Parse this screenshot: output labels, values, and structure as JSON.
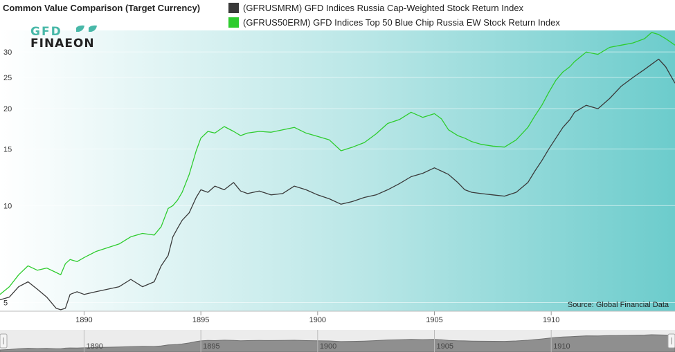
{
  "header": {
    "title": "Common Value Comparison (Target Currency)"
  },
  "logo": {
    "line1": "GFD",
    "line2": "FINAEON"
  },
  "source": "Source: Global Financial Data",
  "navigator": {
    "tick_labels": [
      "1890",
      "1895",
      "1900",
      "1905",
      "1910"
    ]
  },
  "colors": {
    "series1": "#3a3a3a",
    "series2": "#2ecc2e",
    "bg_left": "#ffffff",
    "bg_right": "#6ccccc"
  },
  "chart_data": {
    "type": "line",
    "title": "Common Value Comparison (Target Currency)",
    "x_axis": {
      "scale": "time",
      "range": [
        1886.4,
        1915.3
      ],
      "ticks": [
        1890,
        1895,
        1900,
        1905,
        1910
      ],
      "tick_labels": [
        "1890",
        "1895",
        "1900",
        "1905",
        "1910"
      ]
    },
    "y_axis": {
      "scale": "log",
      "range": [
        4.7,
        35
      ],
      "ticks": [
        5,
        10,
        15,
        20,
        25,
        30
      ],
      "tick_labels": [
        "5",
        "10",
        "15",
        "20",
        "25",
        "30"
      ]
    },
    "series": [
      {
        "name": "(GFRUSMRM) GFD Indices Russia Cap-Weighted Stock Return Index",
        "color": "#3a3a3a",
        "x": [
          1886.4,
          1886.8,
          1887.2,
          1887.6,
          1888.0,
          1888.4,
          1888.8,
          1889.0,
          1889.2,
          1889.4,
          1889.7,
          1890.0,
          1890.5,
          1891.0,
          1891.5,
          1892.0,
          1892.5,
          1893.0,
          1893.3,
          1893.6,
          1893.8,
          1894.0,
          1894.2,
          1894.5,
          1894.8,
          1895.0,
          1895.3,
          1895.6,
          1896.0,
          1896.4,
          1896.7,
          1897.0,
          1897.5,
          1898.0,
          1898.5,
          1899.0,
          1899.5,
          1900.0,
          1900.5,
          1901.0,
          1901.5,
          1902.0,
          1902.5,
          1903.0,
          1903.5,
          1904.0,
          1904.5,
          1905.0,
          1905.3,
          1905.6,
          1906.0,
          1906.3,
          1906.6,
          1907.0,
          1907.5,
          1908.0,
          1908.5,
          1909.0,
          1909.3,
          1909.6,
          1909.9,
          1910.2,
          1910.5,
          1910.8,
          1911.0,
          1911.5,
          1912.0,
          1912.5,
          1913.0,
          1913.5,
          1914.0,
          1914.3,
          1914.6,
          1914.9,
          1915.3
        ],
        "values": [
          5.1,
          5.2,
          5.6,
          5.8,
          5.5,
          5.2,
          4.8,
          4.75,
          4.8,
          5.3,
          5.4,
          5.3,
          5.4,
          5.5,
          5.6,
          5.9,
          5.6,
          5.8,
          6.5,
          7.0,
          8.0,
          8.5,
          9.0,
          9.5,
          10.6,
          11.2,
          11.0,
          11.5,
          11.2,
          11.8,
          11.1,
          10.9,
          11.1,
          10.8,
          10.9,
          11.5,
          11.2,
          10.8,
          10.5,
          10.1,
          10.3,
          10.6,
          10.8,
          11.2,
          11.7,
          12.3,
          12.6,
          13.1,
          12.8,
          12.5,
          11.8,
          11.2,
          11.0,
          10.9,
          10.8,
          10.7,
          11.0,
          11.8,
          12.8,
          13.8,
          15.0,
          16.2,
          17.5,
          18.5,
          19.5,
          20.5,
          20.0,
          21.5,
          23.5,
          25.0,
          26.5,
          27.5,
          28.5,
          27.0,
          24.0
        ]
      },
      {
        "name": "(GFRUS50ERM) GFD Indices Top 50 Blue Chip Russia EW Stock Return Index",
        "color": "#2ecc2e",
        "x": [
          1886.4,
          1886.8,
          1887.2,
          1887.6,
          1888.0,
          1888.4,
          1888.8,
          1889.0,
          1889.2,
          1889.4,
          1889.7,
          1890.0,
          1890.5,
          1891.0,
          1891.5,
          1892.0,
          1892.5,
          1893.0,
          1893.3,
          1893.6,
          1893.8,
          1894.0,
          1894.2,
          1894.5,
          1894.8,
          1895.0,
          1895.3,
          1895.6,
          1896.0,
          1896.4,
          1896.7,
          1897.0,
          1897.5,
          1898.0,
          1898.5,
          1899.0,
          1899.5,
          1900.0,
          1900.5,
          1901.0,
          1901.5,
          1902.0,
          1902.5,
          1903.0,
          1903.5,
          1904.0,
          1904.5,
          1905.0,
          1905.3,
          1905.6,
          1906.0,
          1906.3,
          1906.6,
          1907.0,
          1907.5,
          1908.0,
          1908.5,
          1909.0,
          1909.3,
          1909.6,
          1909.9,
          1910.2,
          1910.5,
          1910.8,
          1911.0,
          1911.5,
          1912.0,
          1912.5,
          1913.0,
          1913.5,
          1914.0,
          1914.3,
          1914.6,
          1914.9,
          1915.3
        ],
        "values": [
          5.3,
          5.6,
          6.1,
          6.5,
          6.3,
          6.4,
          6.2,
          6.1,
          6.6,
          6.8,
          6.7,
          6.9,
          7.2,
          7.4,
          7.6,
          8.0,
          8.2,
          8.1,
          8.6,
          9.8,
          10.0,
          10.4,
          11.0,
          12.5,
          14.8,
          16.2,
          17.0,
          16.8,
          17.6,
          17.0,
          16.5,
          16.8,
          17.0,
          16.9,
          17.2,
          17.5,
          16.8,
          16.4,
          16.0,
          14.8,
          15.2,
          15.7,
          16.7,
          18.0,
          18.5,
          19.5,
          18.8,
          19.3,
          18.6,
          17.2,
          16.5,
          16.2,
          15.8,
          15.5,
          15.3,
          15.2,
          16.0,
          17.5,
          19.0,
          20.5,
          22.5,
          24.5,
          26.0,
          27.0,
          28.0,
          30.0,
          29.5,
          31.0,
          31.5,
          32.0,
          33.0,
          34.5,
          34.0,
          33.0,
          31.5
        ]
      }
    ]
  }
}
